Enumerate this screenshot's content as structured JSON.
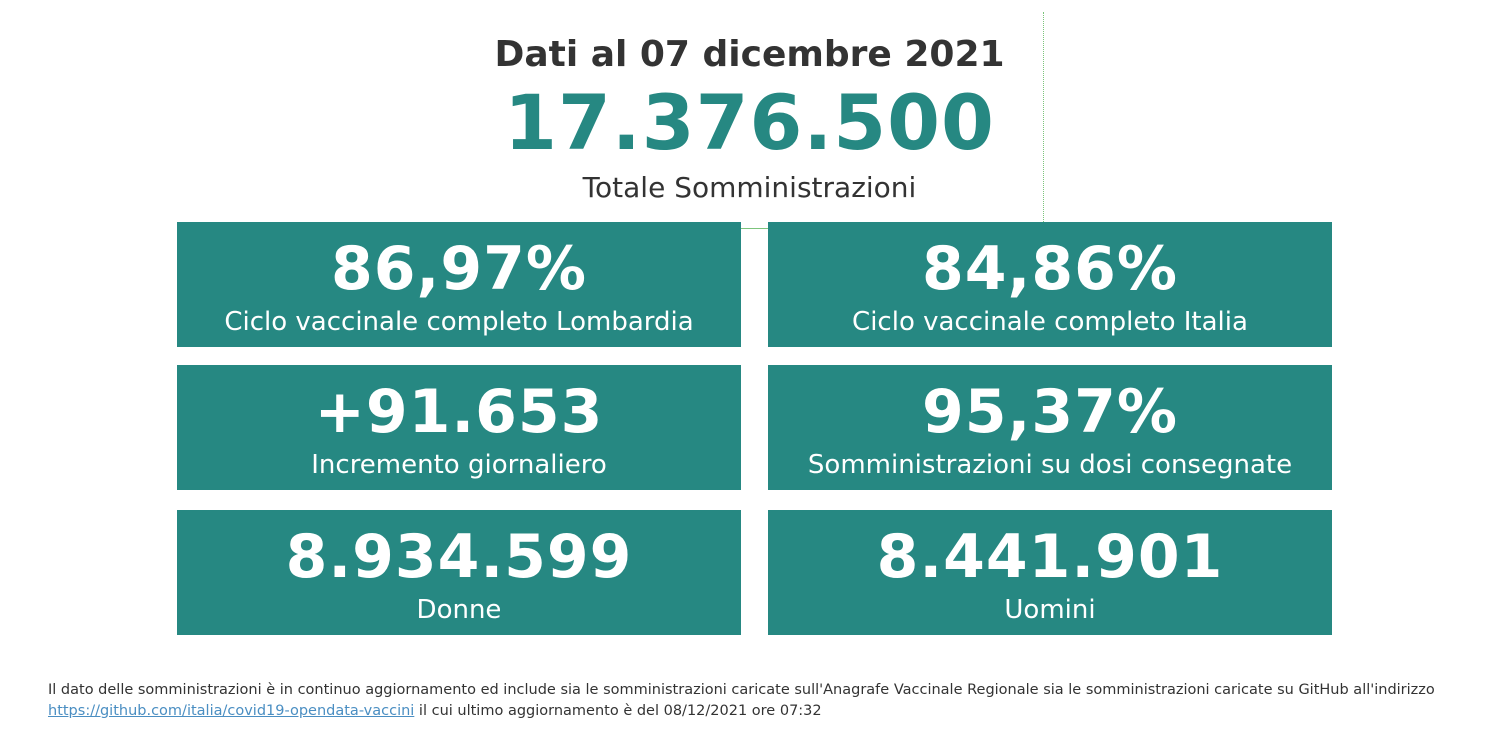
{
  "header": {
    "date_label": "Dati al 07 dicembre 2021",
    "total_value": "17.376.500",
    "total_caption": "Totale Somministrazioni"
  },
  "cards": [
    {
      "value": "86,97%",
      "label": "Ciclo vaccinale completo Lombardia"
    },
    {
      "value": "84,86%",
      "label": "Ciclo vaccinale completo Italia"
    },
    {
      "value": "+91.653",
      "label": "Incremento giornaliero"
    },
    {
      "value": "95,37%",
      "label": "Somministrazioni su dosi consegnate"
    },
    {
      "value": "8.934.599",
      "label": "Donne"
    },
    {
      "value": "8.441.901",
      "label": "Uomini"
    }
  ],
  "footer": {
    "text_before": "Il dato delle somministrazioni è in continuo aggiornamento ed include sia le somministrazioni caricate sull'Anagrafe Vaccinale Regionale sia le somministrazioni caricate su GitHub all'indirizzo",
    "link_text": "https://github.com/italia/covid19-opendata-vaccini",
    "text_after": " il cui ultimo aggiornamento è del 08/12/2021 ore 07:32"
  },
  "colors": {
    "accent": "#268882",
    "text": "#333333",
    "link": "#4a8ec2"
  }
}
